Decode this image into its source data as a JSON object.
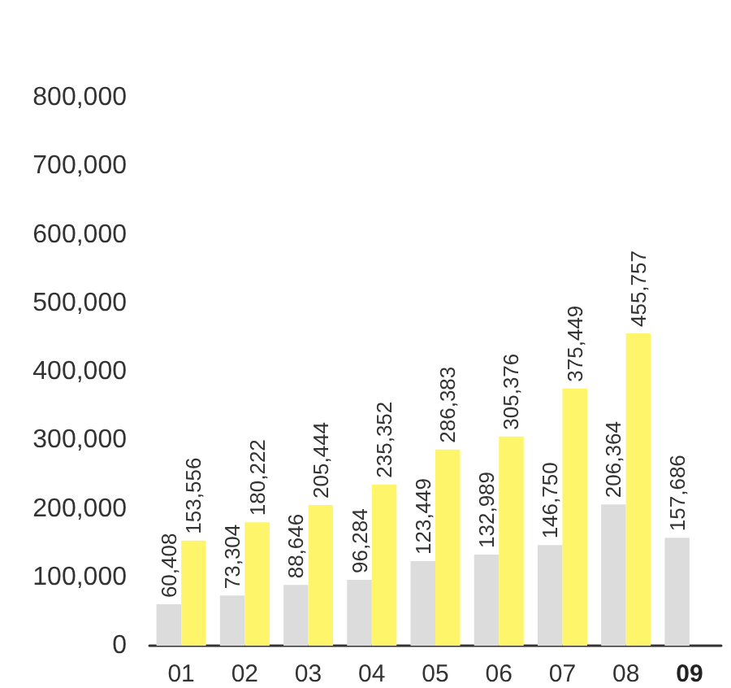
{
  "chart_data": {
    "type": "bar",
    "categories": [
      "01",
      "02",
      "03",
      "04",
      "05",
      "06",
      "07",
      "08",
      "09"
    ],
    "series": [
      {
        "color": "#dcdcdc",
        "values": [
          60408,
          73304,
          88646,
          96284,
          123449,
          132989,
          146750,
          206364,
          157686
        ],
        "value_labels": [
          "60,408",
          "73,304",
          "88,646",
          "96,284",
          "123,449",
          "132,989",
          "146,750",
          "206,364",
          "157,686"
        ]
      },
      {
        "color": "#fff56b",
        "values": [
          153556,
          180222,
          205444,
          235352,
          286383,
          305376,
          375449,
          455757,
          null
        ],
        "value_labels": [
          "153,556",
          "180,222",
          "205,444",
          "235,352",
          "286,383",
          "305,376",
          "375,449",
          "455,757",
          null
        ]
      }
    ],
    "ylim": [
      0,
      800000
    ],
    "yticks": [
      0,
      {
        "value": 100000,
        "label": "100,000"
      },
      {
        "value": 200000,
        "label": "200,000"
      },
      {
        "value": 300000,
        "label": "300,000"
      },
      {
        "value": 400000,
        "label": "400,000"
      },
      {
        "value": 500000,
        "label": "500,000"
      },
      {
        "value": 600000,
        "label": "600,000"
      },
      {
        "value": 700000,
        "label": "700,000"
      },
      {
        "value": 800000,
        "label": "800,000"
      }
    ],
    "grid": false
  }
}
